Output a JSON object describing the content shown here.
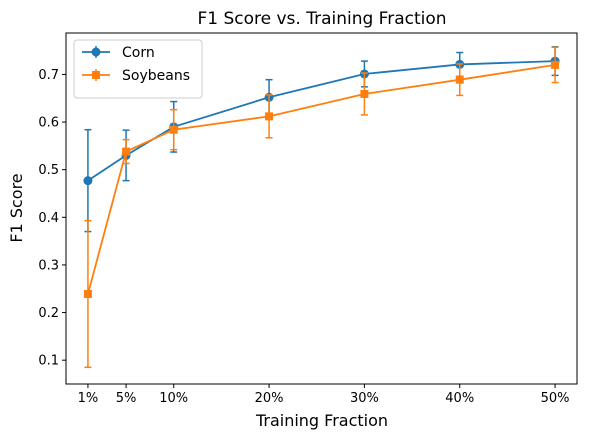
{
  "chart_data": {
    "type": "line",
    "title": "F1 Score vs. Training Fraction",
    "xlabel": "Training Fraction",
    "ylabel": "F1 Score",
    "x": [
      1,
      5,
      10,
      20,
      30,
      40,
      50
    ],
    "x_tick_labels": [
      "1%",
      "5%",
      "10%",
      "20%",
      "30%",
      "40%",
      "50%"
    ],
    "y_ticks": [
      0.1,
      0.2,
      0.3,
      0.4,
      0.5,
      0.6,
      0.7
    ],
    "xlim": [
      -1.3,
      52.3
    ],
    "ylim": [
      0.05,
      0.787
    ],
    "grid": false,
    "legend_position": "upper-left",
    "series": [
      {
        "name": "Corn",
        "color": "#1f77b4",
        "marker": "circle",
        "values": [
          0.477,
          0.53,
          0.59,
          0.652,
          0.701,
          0.721,
          0.728
        ],
        "errors": [
          0.107,
          0.053,
          0.053,
          0.037,
          0.027,
          0.025,
          0.03
        ]
      },
      {
        "name": "Soybeans",
        "color": "#ff7f0e",
        "marker": "square",
        "values": [
          0.239,
          0.538,
          0.584,
          0.612,
          0.659,
          0.689,
          0.72
        ],
        "errors": [
          0.154,
          0.025,
          0.042,
          0.045,
          0.044,
          0.033,
          0.037
        ]
      }
    ]
  }
}
